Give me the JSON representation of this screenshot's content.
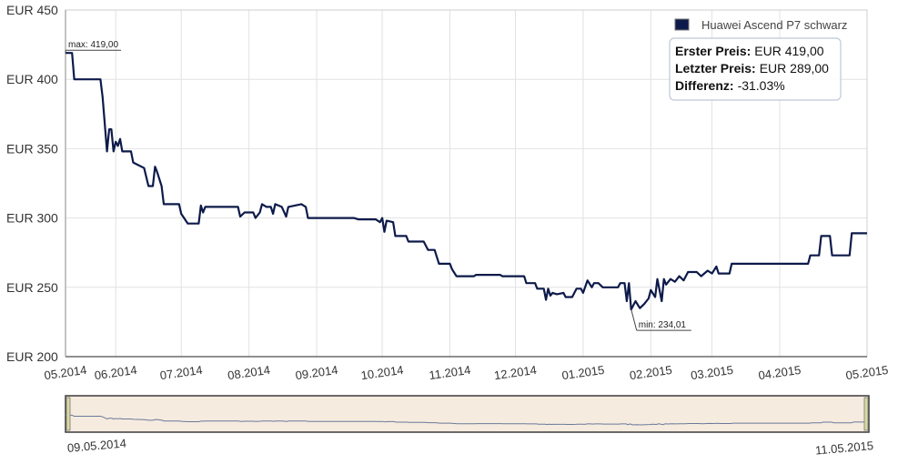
{
  "chart_data": {
    "type": "line",
    "ylim": [
      200,
      450
    ],
    "yticks": [
      "EUR 200",
      "EUR 250",
      "EUR 300",
      "EUR 350",
      "EUR 400",
      "EUR 450"
    ],
    "ytick_values": [
      200,
      250,
      300,
      350,
      400,
      450
    ],
    "xticks": [
      "05.2014",
      "06.2014",
      "07.2014",
      "08.2014",
      "09.2014",
      "10.2014",
      "11.2014",
      "12.2014",
      "01.2015",
      "02.2015",
      "03.2015",
      "04.2015",
      "05.2015"
    ],
    "x_range": [
      "2014-05-09",
      "2015-05-11"
    ],
    "grid": true,
    "legend_position": "top-right",
    "series": [
      {
        "name": "Huawei Ascend P7 schwarz",
        "color": "#0d1a4a",
        "points": [
          [
            "2014-05-09",
            419
          ],
          [
            "2014-05-12",
            419
          ],
          [
            "2014-05-13",
            400
          ],
          [
            "2014-05-25",
            400
          ],
          [
            "2014-05-26",
            387
          ],
          [
            "2014-05-28",
            348
          ],
          [
            "2014-05-29",
            364
          ],
          [
            "2014-05-30",
            364
          ],
          [
            "2014-05-31",
            348
          ],
          [
            "2014-06-01",
            355
          ],
          [
            "2014-06-02",
            352
          ],
          [
            "2014-06-03",
            357
          ],
          [
            "2014-06-04",
            348
          ],
          [
            "2014-06-08",
            348
          ],
          [
            "2014-06-09",
            340
          ],
          [
            "2014-06-14",
            336
          ],
          [
            "2014-06-16",
            323
          ],
          [
            "2014-06-18",
            323
          ],
          [
            "2014-06-19",
            337
          ],
          [
            "2014-06-20",
            333
          ],
          [
            "2014-06-22",
            323
          ],
          [
            "2014-06-23",
            310
          ],
          [
            "2014-06-30",
            310
          ],
          [
            "2014-07-01",
            303
          ],
          [
            "2014-07-04",
            296
          ],
          [
            "2014-07-09",
            296
          ],
          [
            "2014-07-10",
            309
          ],
          [
            "2014-07-11",
            304
          ],
          [
            "2014-07-12",
            308
          ],
          [
            "2014-07-27",
            308
          ],
          [
            "2014-07-28",
            301
          ],
          [
            "2014-07-30",
            304
          ],
          [
            "2014-08-03",
            304
          ],
          [
            "2014-08-04",
            300
          ],
          [
            "2014-08-06",
            304
          ],
          [
            "2014-08-07",
            310
          ],
          [
            "2014-08-09",
            308
          ],
          [
            "2014-08-11",
            308
          ],
          [
            "2014-08-12",
            303
          ],
          [
            "2014-08-13",
            310
          ],
          [
            "2014-08-16",
            308
          ],
          [
            "2014-08-18",
            301
          ],
          [
            "2014-08-19",
            308
          ],
          [
            "2014-08-25",
            310
          ],
          [
            "2014-08-27",
            308
          ],
          [
            "2014-08-28",
            300
          ],
          [
            "2014-09-18",
            300
          ],
          [
            "2014-09-20",
            299
          ],
          [
            "2014-09-28",
            299
          ],
          [
            "2014-09-30",
            297
          ],
          [
            "2014-10-01",
            300
          ],
          [
            "2014-10-02",
            290
          ],
          [
            "2014-10-03",
            298
          ],
          [
            "2014-10-06",
            297
          ],
          [
            "2014-10-07",
            287
          ],
          [
            "2014-10-12",
            287
          ],
          [
            "2014-10-13",
            283
          ],
          [
            "2014-10-20",
            283
          ],
          [
            "2014-10-22",
            277
          ],
          [
            "2014-10-25",
            277
          ],
          [
            "2014-10-27",
            267
          ],
          [
            "2014-11-01",
            267
          ],
          [
            "2014-11-02",
            263
          ],
          [
            "2014-11-04",
            258
          ],
          [
            "2014-11-12",
            258
          ],
          [
            "2014-11-13",
            259
          ],
          [
            "2014-11-24",
            259
          ],
          [
            "2014-11-25",
            258
          ],
          [
            "2014-12-05",
            258
          ],
          [
            "2014-12-06",
            253
          ],
          [
            "2014-12-10",
            253
          ],
          [
            "2014-12-11",
            249
          ],
          [
            "2014-12-14",
            249
          ],
          [
            "2014-12-15",
            241
          ],
          [
            "2014-12-16",
            249
          ],
          [
            "2014-12-17",
            244
          ],
          [
            "2014-12-18",
            246
          ],
          [
            "2014-12-20",
            245
          ],
          [
            "2014-12-23",
            246
          ],
          [
            "2014-12-24",
            243
          ],
          [
            "2014-12-27",
            243
          ],
          [
            "2014-12-28",
            246
          ],
          [
            "2014-12-29",
            249
          ],
          [
            "2014-12-31",
            249
          ],
          [
            "2015-01-01",
            246
          ],
          [
            "2015-01-03",
            255
          ],
          [
            "2015-01-05",
            250
          ],
          [
            "2015-01-06",
            253
          ],
          [
            "2015-01-08",
            253
          ],
          [
            "2015-01-10",
            250
          ],
          [
            "2015-01-17",
            250
          ],
          [
            "2015-01-18",
            253
          ],
          [
            "2015-01-20",
            253
          ],
          [
            "2015-01-21",
            240
          ],
          [
            "2015-01-22",
            253
          ],
          [
            "2015-01-23",
            234
          ],
          [
            "2015-01-25",
            240
          ],
          [
            "2015-01-27",
            235
          ],
          [
            "2015-01-29",
            238
          ],
          [
            "2015-01-31",
            242
          ],
          [
            "2015-02-01",
            248
          ],
          [
            "2015-02-03",
            243
          ],
          [
            "2015-02-04",
            256
          ],
          [
            "2015-02-06",
            240
          ],
          [
            "2015-02-07",
            256
          ],
          [
            "2015-02-08",
            252
          ],
          [
            "2015-02-10",
            256
          ],
          [
            "2015-02-12",
            254
          ],
          [
            "2015-02-14",
            258
          ],
          [
            "2015-02-16",
            255
          ],
          [
            "2015-02-18",
            261
          ],
          [
            "2015-02-22",
            261
          ],
          [
            "2015-02-24",
            258
          ],
          [
            "2015-02-27",
            262
          ],
          [
            "2015-03-01",
            260
          ],
          [
            "2015-03-03",
            265
          ],
          [
            "2015-03-04",
            260
          ],
          [
            "2015-03-09",
            260
          ],
          [
            "2015-03-10",
            267
          ],
          [
            "2015-04-14",
            267
          ],
          [
            "2015-04-15",
            273
          ],
          [
            "2015-04-19",
            273
          ],
          [
            "2015-04-20",
            287
          ],
          [
            "2015-04-24",
            287
          ],
          [
            "2015-04-25",
            273
          ],
          [
            "2015-05-03",
            273
          ],
          [
            "2015-05-04",
            289
          ],
          [
            "2015-05-11",
            289
          ]
        ]
      }
    ],
    "annotations": [
      {
        "text": "max: 419,00",
        "x": "2014-05-09",
        "y": 419
      },
      {
        "text": "min: 234,01",
        "x": "2015-01-23",
        "y": 234.01
      }
    ],
    "info_box": {
      "rows": [
        {
          "label": "Erster Preis:",
          "value": "EUR 419,00"
        },
        {
          "label": "Letzter Preis:",
          "value": "EUR 289,00"
        },
        {
          "label": "Differenz:",
          "value": "-31.03%"
        }
      ]
    },
    "navigator": {
      "start_label": "09.05.2014",
      "end_label": "11.05.2015"
    }
  }
}
